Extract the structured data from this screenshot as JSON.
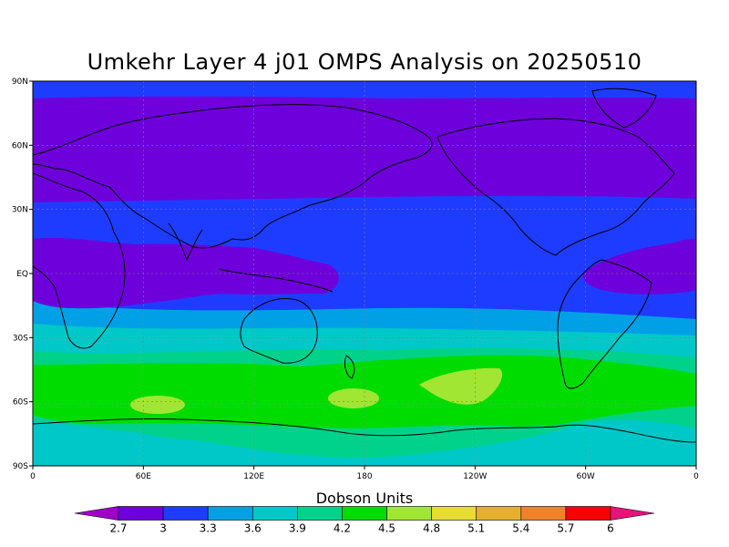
{
  "title": "Umkehr Layer 4 j01 OMPS Analysis on 20250510",
  "chart_data": {
    "type": "heatmap",
    "title": "Umkehr Layer 4 j01 OMPS Analysis on 20250510",
    "projection": "cylindrical equidistant",
    "lon_range": [
      0,
      360
    ],
    "lat_range": [
      -90,
      90
    ],
    "x_ticks": [
      "0",
      "60E",
      "120E",
      "180",
      "120W",
      "60W",
      "0"
    ],
    "y_ticks": [
      "90N",
      "60N",
      "30N",
      "EQ",
      "30S",
      "60S",
      "90S"
    ],
    "grid": true,
    "coastlines": true,
    "colorbar": {
      "title": "Dobson Units",
      "levels": [
        "2.7",
        "3",
        "3.3",
        "3.6",
        "3.9",
        "4.2",
        "4.5",
        "4.8",
        "5.1",
        "5.4",
        "5.7",
        "6"
      ],
      "colors": [
        "#a000c8",
        "#6e00dc",
        "#1e3cff",
        "#00a0e6",
        "#00c8c8",
        "#00d28c",
        "#00dc00",
        "#a0e632",
        "#e6dc32",
        "#e6af2d",
        "#f08228",
        "#fa0000",
        "#e6147a"
      ]
    },
    "field_summary": [
      {
        "region": "Arctic, 90N-85N",
        "value_range": [
          3.0,
          3.3
        ]
      },
      {
        "region": "Northern mid-high latitudes, 85N-35N",
        "value_range": [
          2.7,
          3.0
        ]
      },
      {
        "region": "Northern subtropics, 35N-15N",
        "value_range": [
          3.0,
          3.3
        ]
      },
      {
        "region": "Tropics (Africa/Indian Ocean and eastern Pacific/S. America)",
        "value_range": [
          2.7,
          3.0
        ]
      },
      {
        "region": "Southern subtropics, 20S-40S",
        "value_range": [
          3.3,
          3.9
        ]
      },
      {
        "region": "Southern mid-latitudes, 40S-70S",
        "value_range": [
          4.2,
          4.5
        ]
      },
      {
        "region": "Local maxima near 60S (60E, 170E, 130W)",
        "value_range": [
          4.5,
          4.8
        ]
      },
      {
        "region": "Antarctic, 70S-90S",
        "value_range": [
          3.9,
          4.2
        ]
      }
    ]
  }
}
